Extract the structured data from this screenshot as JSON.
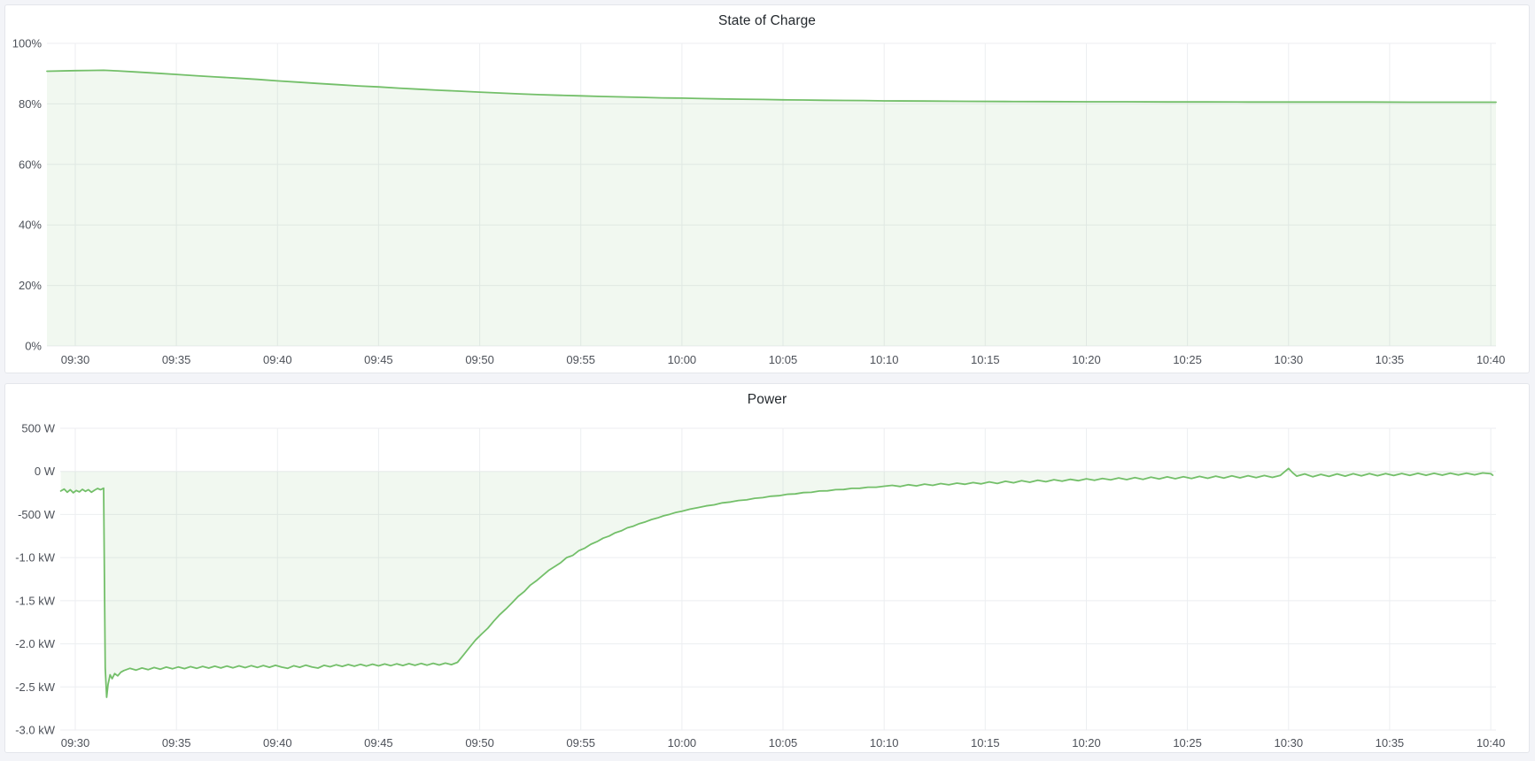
{
  "page": {
    "background": "#f3f4f8",
    "panel_background": "#ffffff"
  },
  "chart_data": [
    {
      "type": "area",
      "title": "State of Charge",
      "unit": "percent",
      "legend": "none",
      "grid": true,
      "line_color": "#73bf69",
      "fill_color": "rgba(115,191,105,0.10)",
      "baseline": 0,
      "ylim": [
        0,
        100
      ],
      "xlim_minutes": [
        -1.4,
        70.26
      ],
      "x_ticks": [
        {
          "t": 0,
          "label": "09:30"
        },
        {
          "t": 5,
          "label": "09:35"
        },
        {
          "t": 10,
          "label": "09:40"
        },
        {
          "t": 15,
          "label": "09:45"
        },
        {
          "t": 20,
          "label": "09:50"
        },
        {
          "t": 25,
          "label": "09:55"
        },
        {
          "t": 30,
          "label": "10:00"
        },
        {
          "t": 35,
          "label": "10:05"
        },
        {
          "t": 40,
          "label": "10:10"
        },
        {
          "t": 45,
          "label": "10:15"
        },
        {
          "t": 50,
          "label": "10:20"
        },
        {
          "t": 55,
          "label": "10:25"
        },
        {
          "t": 60,
          "label": "10:30"
        },
        {
          "t": 65,
          "label": "10:35"
        },
        {
          "t": 70,
          "label": "10:40"
        }
      ],
      "y_ticks": [
        {
          "value": 0,
          "label": "0%"
        },
        {
          "value": 20,
          "label": "20%"
        },
        {
          "value": 40,
          "label": "40%"
        },
        {
          "value": 60,
          "label": "60%"
        },
        {
          "value": 80,
          "label": "80%"
        },
        {
          "value": 100,
          "label": "100%"
        }
      ],
      "points": [
        [
          -1.4,
          90.8
        ],
        [
          0,
          91.0
        ],
        [
          0.7,
          91.05
        ],
        [
          1.4,
          91.1
        ],
        [
          2.1,
          90.9
        ],
        [
          3,
          90.55
        ],
        [
          4,
          90.15
        ],
        [
          5,
          89.75
        ],
        [
          6,
          89.3
        ],
        [
          7,
          88.9
        ],
        [
          8,
          88.5
        ],
        [
          9,
          88.1
        ],
        [
          10,
          87.6
        ],
        [
          11,
          87.2
        ],
        [
          12,
          86.75
        ],
        [
          13,
          86.35
        ],
        [
          14,
          85.95
        ],
        [
          15,
          85.6
        ],
        [
          16,
          85.2
        ],
        [
          17,
          84.85
        ],
        [
          18,
          84.5
        ],
        [
          19,
          84.2
        ],
        [
          20,
          83.9
        ],
        [
          21,
          83.6
        ],
        [
          22,
          83.3
        ],
        [
          23,
          83.05
        ],
        [
          24,
          82.85
        ],
        [
          25,
          82.65
        ],
        [
          26,
          82.45
        ],
        [
          27,
          82.3
        ],
        [
          28,
          82.15
        ],
        [
          29,
          82.0
        ],
        [
          30,
          81.9
        ],
        [
          31,
          81.75
        ],
        [
          32,
          81.65
        ],
        [
          33,
          81.55
        ],
        [
          34,
          81.45
        ],
        [
          35,
          81.35
        ],
        [
          36,
          81.3
        ],
        [
          37,
          81.2
        ],
        [
          38,
          81.15
        ],
        [
          39,
          81.1
        ],
        [
          40,
          81.0
        ],
        [
          42,
          80.95
        ],
        [
          44,
          80.85
        ],
        [
          46,
          80.8
        ],
        [
          48,
          80.75
        ],
        [
          50,
          80.7
        ],
        [
          52,
          80.7
        ],
        [
          54,
          80.65
        ],
        [
          56,
          80.65
        ],
        [
          58,
          80.6
        ],
        [
          60,
          80.6
        ],
        [
          62,
          80.6
        ],
        [
          64,
          80.6
        ],
        [
          66,
          80.55
        ],
        [
          68,
          80.55
        ],
        [
          70.26,
          80.55
        ]
      ]
    },
    {
      "type": "area",
      "title": "Power",
      "unit": "watt",
      "legend": "none",
      "grid": true,
      "line_color": "#73bf69",
      "fill_color": "rgba(115,191,105,0.10)",
      "baseline": 0,
      "ylim": [
        -3000,
        500
      ],
      "xlim_minutes": [
        -0.745,
        70.26
      ],
      "x_ticks": [
        {
          "t": 0,
          "label": "09:30"
        },
        {
          "t": 5,
          "label": "09:35"
        },
        {
          "t": 10,
          "label": "09:40"
        },
        {
          "t": 15,
          "label": "09:45"
        },
        {
          "t": 20,
          "label": "09:50"
        },
        {
          "t": 25,
          "label": "09:55"
        },
        {
          "t": 30,
          "label": "10:00"
        },
        {
          "t": 35,
          "label": "10:05"
        },
        {
          "t": 40,
          "label": "10:10"
        },
        {
          "t": 45,
          "label": "10:15"
        },
        {
          "t": 50,
          "label": "10:20"
        },
        {
          "t": 55,
          "label": "10:25"
        },
        {
          "t": 60,
          "label": "10:30"
        },
        {
          "t": 65,
          "label": "10:35"
        },
        {
          "t": 70,
          "label": "10:40"
        }
      ],
      "y_ticks": [
        {
          "value": 500,
          "label": "500 W"
        },
        {
          "value": 0,
          "label": "0 W"
        },
        {
          "value": -500,
          "label": "-500 W"
        },
        {
          "value": -1000,
          "label": "-1.0 kW"
        },
        {
          "value": -1500,
          "label": "-1.5 kW"
        },
        {
          "value": -2000,
          "label": "-2.0 kW"
        },
        {
          "value": -2500,
          "label": "-2.5 kW"
        },
        {
          "value": -3000,
          "label": "-3.0 kW"
        }
      ],
      "points": [
        [
          -0.72,
          -228
        ],
        [
          -0.55,
          -205
        ],
        [
          -0.4,
          -242
        ],
        [
          -0.25,
          -212
        ],
        [
          -0.1,
          -248
        ],
        [
          0.05,
          -222
        ],
        [
          0.2,
          -238
        ],
        [
          0.35,
          -208
        ],
        [
          0.5,
          -232
        ],
        [
          0.65,
          -212
        ],
        [
          0.8,
          -242
        ],
        [
          0.95,
          -218
        ],
        [
          1.1,
          -198
        ],
        [
          1.25,
          -212
        ],
        [
          1.4,
          -195
        ],
        [
          1.48,
          -2280
        ],
        [
          1.55,
          -2620
        ],
        [
          1.62,
          -2470
        ],
        [
          1.72,
          -2360
        ],
        [
          1.82,
          -2405
        ],
        [
          1.95,
          -2345
        ],
        [
          2.1,
          -2372
        ],
        [
          2.25,
          -2330
        ],
        [
          2.4,
          -2310
        ],
        [
          2.7,
          -2285
        ],
        [
          3.0,
          -2305
        ],
        [
          3.3,
          -2280
        ],
        [
          3.6,
          -2300
        ],
        [
          3.9,
          -2275
        ],
        [
          4.2,
          -2295
        ],
        [
          4.5,
          -2270
        ],
        [
          4.8,
          -2290
        ],
        [
          5.1,
          -2268
        ],
        [
          5.4,
          -2288
        ],
        [
          5.7,
          -2265
        ],
        [
          6.0,
          -2285
        ],
        [
          6.3,
          -2262
        ],
        [
          6.6,
          -2282
        ],
        [
          6.9,
          -2260
        ],
        [
          7.2,
          -2280
        ],
        [
          7.5,
          -2258
        ],
        [
          7.8,
          -2278
        ],
        [
          8.1,
          -2256
        ],
        [
          8.4,
          -2276
        ],
        [
          8.7,
          -2254
        ],
        [
          9.0,
          -2274
        ],
        [
          9.3,
          -2252
        ],
        [
          9.6,
          -2272
        ],
        [
          9.9,
          -2250
        ],
        [
          10.2,
          -2270
        ],
        [
          10.5,
          -2285
        ],
        [
          10.8,
          -2255
        ],
        [
          11.1,
          -2272
        ],
        [
          11.4,
          -2248
        ],
        [
          11.7,
          -2268
        ],
        [
          12.0,
          -2282
        ],
        [
          12.3,
          -2250
        ],
        [
          12.6,
          -2266
        ],
        [
          12.9,
          -2244
        ],
        [
          13.2,
          -2262
        ],
        [
          13.5,
          -2240
        ],
        [
          13.8,
          -2260
        ],
        [
          14.1,
          -2238
        ],
        [
          14.4,
          -2258
        ],
        [
          14.7,
          -2236
        ],
        [
          15.0,
          -2256
        ],
        [
          15.3,
          -2234
        ],
        [
          15.6,
          -2254
        ],
        [
          15.9,
          -2232
        ],
        [
          16.2,
          -2252
        ],
        [
          16.5,
          -2230
        ],
        [
          16.8,
          -2250
        ],
        [
          17.1,
          -2228
        ],
        [
          17.4,
          -2248
        ],
        [
          17.7,
          -2226
        ],
        [
          18.0,
          -2246
        ],
        [
          18.3,
          -2224
        ],
        [
          18.6,
          -2242
        ],
        [
          18.9,
          -2215
        ],
        [
          19.2,
          -2130
        ],
        [
          19.5,
          -2040
        ],
        [
          19.8,
          -1955
        ],
        [
          20.1,
          -1885
        ],
        [
          20.4,
          -1820
        ],
        [
          20.7,
          -1735
        ],
        [
          21.0,
          -1660
        ],
        [
          21.3,
          -1595
        ],
        [
          21.6,
          -1525
        ],
        [
          21.9,
          -1450
        ],
        [
          22.2,
          -1395
        ],
        [
          22.5,
          -1320
        ],
        [
          22.8,
          -1270
        ],
        [
          23.1,
          -1210
        ],
        [
          23.4,
          -1150
        ],
        [
          23.7,
          -1105
        ],
        [
          24.0,
          -1060
        ],
        [
          24.3,
          -1000
        ],
        [
          24.6,
          -975
        ],
        [
          24.9,
          -920
        ],
        [
          25.2,
          -890
        ],
        [
          25.5,
          -845
        ],
        [
          25.8,
          -815
        ],
        [
          26.1,
          -775
        ],
        [
          26.4,
          -750
        ],
        [
          26.7,
          -712
        ],
        [
          27.0,
          -690
        ],
        [
          27.3,
          -655
        ],
        [
          27.6,
          -635
        ],
        [
          27.9,
          -605
        ],
        [
          28.2,
          -585
        ],
        [
          28.5,
          -558
        ],
        [
          28.8,
          -540
        ],
        [
          29.1,
          -515
        ],
        [
          29.4,
          -498
        ],
        [
          29.7,
          -476
        ],
        [
          30.0,
          -462
        ],
        [
          30.4,
          -438
        ],
        [
          30.8,
          -420
        ],
        [
          31.2,
          -400
        ],
        [
          31.6,
          -388
        ],
        [
          32.0,
          -365
        ],
        [
          32.4,
          -355
        ],
        [
          32.8,
          -338
        ],
        [
          33.2,
          -330
        ],
        [
          33.6,
          -312
        ],
        [
          34.0,
          -305
        ],
        [
          34.4,
          -288
        ],
        [
          34.8,
          -282
        ],
        [
          35.2,
          -266
        ],
        [
          35.6,
          -262
        ],
        [
          36.0,
          -246
        ],
        [
          36.4,
          -243
        ],
        [
          36.8,
          -228
        ],
        [
          37.2,
          -226
        ],
        [
          37.6,
          -212
        ],
        [
          38.0,
          -210
        ],
        [
          38.4,
          -197
        ],
        [
          38.8,
          -196
        ],
        [
          39.2,
          -184
        ],
        [
          39.6,
          -184
        ],
        [
          40.0,
          -172
        ],
        [
          40.4,
          -162
        ],
        [
          40.8,
          -175
        ],
        [
          41.2,
          -155
        ],
        [
          41.6,
          -168
        ],
        [
          42.0,
          -148
        ],
        [
          42.4,
          -162
        ],
        [
          42.8,
          -142
        ],
        [
          43.2,
          -156
        ],
        [
          43.6,
          -136
        ],
        [
          44.0,
          -150
        ],
        [
          44.4,
          -130
        ],
        [
          44.8,
          -145
        ],
        [
          45.2,
          -122
        ],
        [
          45.6,
          -140
        ],
        [
          46.0,
          -115
        ],
        [
          46.4,
          -132
        ],
        [
          46.8,
          -108
        ],
        [
          47.2,
          -126
        ],
        [
          47.6,
          -102
        ],
        [
          48.0,
          -120
        ],
        [
          48.4,
          -96
        ],
        [
          48.8,
          -114
        ],
        [
          49.2,
          -92
        ],
        [
          49.6,
          -108
        ],
        [
          50.0,
          -86
        ],
        [
          50.4,
          -104
        ],
        [
          50.8,
          -82
        ],
        [
          51.2,
          -98
        ],
        [
          51.6,
          -76
        ],
        [
          52.0,
          -95
        ],
        [
          52.4,
          -72
        ],
        [
          52.8,
          -92
        ],
        [
          53.2,
          -68
        ],
        [
          53.6,
          -88
        ],
        [
          54.0,
          -64
        ],
        [
          54.4,
          -85
        ],
        [
          54.8,
          -62
        ],
        [
          55.2,
          -82
        ],
        [
          55.6,
          -58
        ],
        [
          56.0,
          -80
        ],
        [
          56.4,
          -55
        ],
        [
          56.8,
          -78
        ],
        [
          57.2,
          -52
        ],
        [
          57.6,
          -75
        ],
        [
          58.0,
          -50
        ],
        [
          58.4,
          -72
        ],
        [
          58.8,
          -48
        ],
        [
          59.2,
          -70
        ],
        [
          59.6,
          -46
        ],
        [
          60.0,
          35
        ],
        [
          60.2,
          -15
        ],
        [
          60.4,
          -55
        ],
        [
          60.8,
          -30
        ],
        [
          61.2,
          -62
        ],
        [
          61.6,
          -35
        ],
        [
          62.0,
          -58
        ],
        [
          62.4,
          -30
        ],
        [
          62.8,
          -55
        ],
        [
          63.2,
          -28
        ],
        [
          63.6,
          -52
        ],
        [
          64.0,
          -26
        ],
        [
          64.4,
          -50
        ],
        [
          64.8,
          -25
        ],
        [
          65.2,
          -48
        ],
        [
          65.6,
          -24
        ],
        [
          66.0,
          -46
        ],
        [
          66.4,
          -22
        ],
        [
          66.8,
          -45
        ],
        [
          67.2,
          -22
        ],
        [
          67.6,
          -44
        ],
        [
          68.0,
          -20
        ],
        [
          68.4,
          -42
        ],
        [
          68.8,
          -20
        ],
        [
          69.2,
          -40
        ],
        [
          69.6,
          -18
        ],
        [
          70.0,
          -28
        ],
        [
          70.1,
          -45
        ]
      ]
    }
  ]
}
